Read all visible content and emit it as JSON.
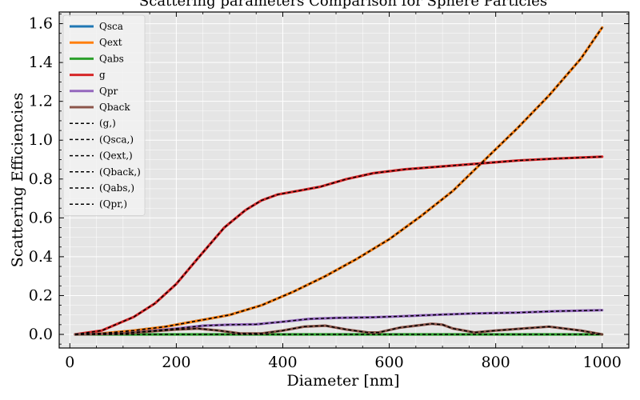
{
  "chart_data": {
    "type": "line",
    "title": "Scattering parameters Comparison for Sphere Particles",
    "xlabel": "Diameter [nm]",
    "ylabel": "Scattering Efficiencies",
    "xlim": [
      -20,
      1050
    ],
    "ylim": [
      -0.07,
      1.66
    ],
    "xticks": [
      0,
      200,
      400,
      600,
      800,
      1000
    ],
    "xtick_labels": [
      "0",
      "200",
      "400",
      "600",
      "800",
      "1000"
    ],
    "yticks": [
      0.0,
      0.2,
      0.4,
      0.6,
      0.8,
      1.0,
      1.2,
      1.4,
      1.6
    ],
    "ytick_labels": [
      "0.0",
      "0.2",
      "0.4",
      "0.6",
      "0.8",
      "1.0",
      "1.2",
      "1.4",
      "1.6"
    ],
    "grid": true,
    "legend_position": "top-left",
    "series": [
      {
        "name": "Qsca",
        "color": "#1f77b4",
        "style": "solid",
        "x": [
          10,
          60,
          120,
          180,
          240,
          300,
          360,
          420,
          480,
          540,
          600,
          660,
          720,
          780,
          840,
          900,
          960,
          1000
        ],
        "y": [
          0.0,
          0.005,
          0.02,
          0.04,
          0.07,
          0.1,
          0.15,
          0.22,
          0.3,
          0.39,
          0.49,
          0.61,
          0.74,
          0.9,
          1.06,
          1.23,
          1.42,
          1.58
        ]
      },
      {
        "name": "Qext",
        "color": "#ff7f0e",
        "style": "solid",
        "x": [
          10,
          60,
          120,
          180,
          240,
          300,
          360,
          420,
          480,
          540,
          600,
          660,
          720,
          780,
          840,
          900,
          960,
          1000
        ],
        "y": [
          0.0,
          0.005,
          0.02,
          0.04,
          0.07,
          0.1,
          0.15,
          0.22,
          0.3,
          0.39,
          0.49,
          0.61,
          0.74,
          0.9,
          1.06,
          1.23,
          1.42,
          1.58
        ]
      },
      {
        "name": "Qabs",
        "color": "#2ca02c",
        "style": "solid",
        "x": [
          10,
          200,
          400,
          600,
          800,
          1000
        ],
        "y": [
          0.0,
          0.0,
          0.0,
          0.0,
          0.0,
          0.0
        ]
      },
      {
        "name": "g",
        "color": "#d62728",
        "style": "solid",
        "x": [
          10,
          60,
          120,
          160,
          200,
          240,
          290,
          330,
          360,
          390,
          430,
          470,
          520,
          570,
          630,
          700,
          770,
          840,
          910,
          1000
        ],
        "y": [
          0.0,
          0.02,
          0.09,
          0.16,
          0.26,
          0.39,
          0.55,
          0.64,
          0.69,
          0.72,
          0.74,
          0.76,
          0.8,
          0.83,
          0.85,
          0.865,
          0.88,
          0.895,
          0.905,
          0.915
        ]
      },
      {
        "name": "Qpr",
        "color": "#9467bd",
        "style": "solid",
        "x": [
          10,
          100,
          200,
          250,
          300,
          350,
          400,
          450,
          500,
          570,
          640,
          700,
          760,
          840,
          920,
          1000
        ],
        "y": [
          0.0,
          0.005,
          0.03,
          0.045,
          0.05,
          0.052,
          0.065,
          0.08,
          0.085,
          0.088,
          0.095,
          0.102,
          0.108,
          0.112,
          0.12,
          0.125
        ]
      },
      {
        "name": "Qback",
        "color": "#8c564b",
        "style": "solid",
        "x": [
          10,
          100,
          150,
          200,
          240,
          280,
          320,
          360,
          400,
          440,
          480,
          520,
          560,
          580,
          620,
          650,
          680,
          700,
          720,
          760,
          800,
          850,
          900,
          960,
          1000
        ],
        "y": [
          0.0,
          0.005,
          0.015,
          0.025,
          0.03,
          0.02,
          0.005,
          0.005,
          0.02,
          0.04,
          0.045,
          0.025,
          0.01,
          0.01,
          0.035,
          0.045,
          0.055,
          0.05,
          0.03,
          0.01,
          0.02,
          0.03,
          0.04,
          0.02,
          0.0
        ]
      }
    ],
    "overlay_series": [
      {
        "name": "(g,)",
        "of": "g"
      },
      {
        "name": "(Qsca,)",
        "of": "Qsca"
      },
      {
        "name": "(Qext,)",
        "of": "Qext"
      },
      {
        "name": "(Qback,)",
        "of": "Qback"
      },
      {
        "name": "(Qabs,)",
        "of": "Qabs"
      },
      {
        "name": "(Qpr,)",
        "of": "Qpr"
      }
    ],
    "overlay_color": "#000000",
    "overlay_style": "dashed"
  }
}
